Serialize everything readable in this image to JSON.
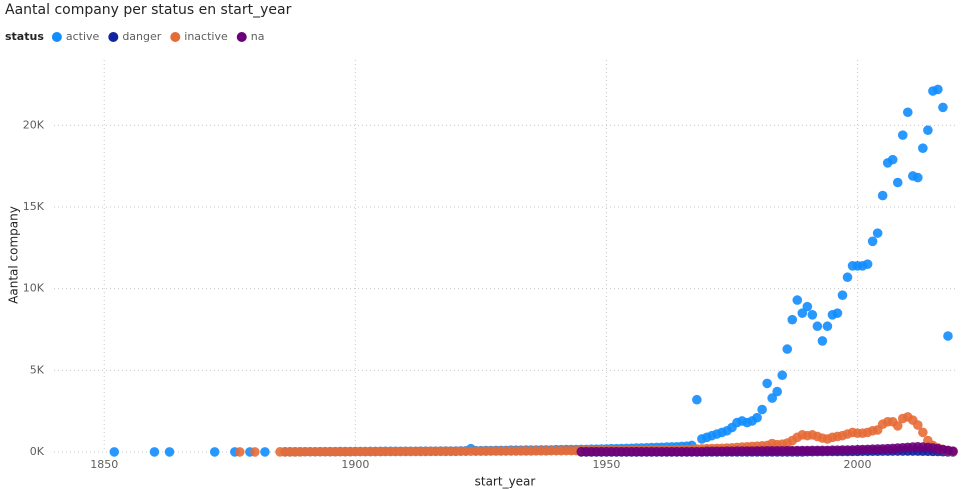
{
  "chart_data": {
    "type": "scatter",
    "title": "Aantal company per status en start_year",
    "legend_title": "status",
    "x_label": "start_year",
    "y_label": "Aantal company",
    "xlim": [
      1840,
      2020
    ],
    "xticks": [
      1850,
      1900,
      1950,
      2000
    ],
    "ylim": [
      0,
      24000
    ],
    "yticks": [
      {
        "value": 0,
        "label": "0K"
      },
      {
        "value": 5000,
        "label": "5K"
      },
      {
        "value": 10000,
        "label": "10K"
      },
      {
        "value": 15000,
        "label": "15K"
      },
      {
        "value": 20000,
        "label": "20K"
      }
    ],
    "grid": true,
    "series": [
      {
        "name": "active",
        "color": "#118DFF",
        "x": [
          1852,
          1860,
          1863,
          1872,
          1876,
          1879,
          1882,
          1886,
          1887,
          1888,
          1889,
          1890,
          1891,
          1892,
          1893,
          1894,
          1895,
          1896,
          1897,
          1898,
          1899,
          1900,
          1901,
          1902,
          1903,
          1904,
          1905,
          1906,
          1907,
          1908,
          1909,
          1910,
          1911,
          1912,
          1913,
          1914,
          1915,
          1916,
          1917,
          1918,
          1919,
          1920,
          1921,
          1922,
          1923,
          1924,
          1925,
          1926,
          1927,
          1928,
          1929,
          1930,
          1931,
          1932,
          1933,
          1934,
          1935,
          1936,
          1937,
          1938,
          1939,
          1940,
          1941,
          1942,
          1943,
          1944,
          1945,
          1946,
          1947,
          1948,
          1949,
          1950,
          1951,
          1952,
          1953,
          1954,
          1955,
          1956,
          1957,
          1958,
          1959,
          1960,
          1961,
          1962,
          1963,
          1964,
          1965,
          1966,
          1967,
          1968,
          1969,
          1970,
          1971,
          1972,
          1973,
          1974,
          1975,
          1976,
          1977,
          1978,
          1979,
          1980,
          1981,
          1982,
          1983,
          1984,
          1985,
          1986,
          1987,
          1988,
          1989,
          1990,
          1991,
          1992,
          1993,
          1994,
          1995,
          1996,
          1997,
          1998,
          1999,
          2000,
          2001,
          2002,
          2003,
          2004,
          2005,
          2006,
          2007,
          2008,
          2009,
          2010,
          2011,
          2012,
          2013,
          2014,
          2015,
          2016,
          2017,
          2018
        ],
        "values": [
          5,
          5,
          5,
          5,
          5,
          5,
          5,
          10,
          10,
          10,
          15,
          15,
          15,
          15,
          20,
          20,
          20,
          20,
          25,
          25,
          25,
          30,
          30,
          30,
          35,
          35,
          35,
          40,
          40,
          40,
          40,
          45,
          45,
          45,
          50,
          50,
          50,
          50,
          55,
          55,
          60,
          60,
          65,
          70,
          200,
          80,
          80,
          90,
          90,
          100,
          100,
          100,
          110,
          110,
          110,
          120,
          120,
          120,
          130,
          130,
          130,
          140,
          140,
          150,
          150,
          150,
          160,
          160,
          170,
          170,
          180,
          190,
          200,
          200,
          210,
          220,
          230,
          240,
          250,
          260,
          270,
          280,
          290,
          300,
          310,
          320,
          340,
          360,
          400,
          3200,
          800,
          900,
          1000,
          1100,
          1200,
          1300,
          1500,
          1800,
          1900,
          1800,
          1900,
          2100,
          2600,
          4200,
          3300,
          3700,
          4700,
          6300,
          8100,
          9300,
          8500,
          8900,
          8400,
          7700,
          6800,
          7700,
          8400,
          8500,
          9600,
          10700,
          11400,
          11400,
          11400,
          11500,
          12900,
          13400,
          15700,
          17700,
          17900,
          16500,
          19400,
          20800,
          16900,
          16800,
          18600,
          19700,
          22100,
          22200,
          21100,
          7100
        ]
      },
      {
        "name": "danger",
        "color": "#12239E",
        "x": [
          1945,
          1946,
          1947,
          1948,
          1949,
          1950,
          1951,
          1952,
          1953,
          1954,
          1955,
          1956,
          1957,
          1958,
          1959,
          1960,
          1961,
          1962,
          1963,
          1964,
          1965,
          1966,
          1967,
          1968,
          1969,
          1970,
          1971,
          1972,
          1973,
          1974,
          1975,
          1976,
          1977,
          1978,
          1979,
          1980,
          1981,
          1982,
          1983,
          1984,
          1985,
          1986,
          1987,
          1988,
          1989,
          1990,
          1991,
          1992,
          1993,
          1994,
          1995,
          1996,
          1997,
          1998,
          1999,
          2000,
          2001,
          2002,
          2003,
          2004,
          2005,
          2006,
          2007,
          2008,
          2009,
          2010,
          2011,
          2012,
          2013,
          2014,
          2015,
          2016,
          2017,
          2018,
          2019
        ],
        "values": [
          5,
          5,
          5,
          5,
          5,
          5,
          5,
          5,
          5,
          5,
          5,
          5,
          5,
          5,
          5,
          5,
          5,
          5,
          5,
          5,
          5,
          5,
          5,
          5,
          5,
          10,
          10,
          10,
          10,
          10,
          10,
          10,
          10,
          10,
          10,
          10,
          10,
          10,
          10,
          10,
          10,
          10,
          10,
          10,
          10,
          20,
          20,
          25,
          25,
          30,
          30,
          30,
          35,
          35,
          40,
          40,
          45,
          45,
          50,
          50,
          55,
          55,
          60,
          60,
          60,
          60,
          60,
          55,
          50,
          45,
          40,
          30,
          20,
          10,
          5
        ]
      },
      {
        "name": "inactive",
        "color": "#E66C37",
        "x": [
          1877,
          1880,
          1885,
          1886,
          1887,
          1888,
          1889,
          1890,
          1891,
          1892,
          1893,
          1894,
          1895,
          1896,
          1897,
          1898,
          1899,
          1900,
          1901,
          1902,
          1903,
          1904,
          1905,
          1906,
          1907,
          1908,
          1909,
          1910,
          1911,
          1912,
          1913,
          1914,
          1915,
          1916,
          1917,
          1918,
          1919,
          1920,
          1921,
          1922,
          1923,
          1924,
          1925,
          1926,
          1927,
          1928,
          1929,
          1930,
          1931,
          1932,
          1933,
          1934,
          1935,
          1936,
          1937,
          1938,
          1939,
          1940,
          1941,
          1942,
          1943,
          1944,
          1945,
          1946,
          1947,
          1948,
          1949,
          1950,
          1951,
          1952,
          1953,
          1954,
          1955,
          1956,
          1957,
          1958,
          1959,
          1960,
          1961,
          1962,
          1963,
          1964,
          1965,
          1966,
          1967,
          1968,
          1969,
          1970,
          1971,
          1972,
          1973,
          1974,
          1975,
          1976,
          1977,
          1978,
          1979,
          1980,
          1981,
          1982,
          1983,
          1984,
          1985,
          1986,
          1987,
          1988,
          1989,
          1990,
          1991,
          1992,
          1993,
          1994,
          1995,
          1996,
          1997,
          1998,
          1999,
          2000,
          2001,
          2002,
          2003,
          2004,
          2005,
          2006,
          2007,
          2008,
          2009,
          2010,
          2011,
          2012,
          2013,
          2014,
          2015,
          2016,
          2017,
          2018,
          2019
        ],
        "values": [
          5,
          5,
          10,
          10,
          10,
          10,
          10,
          15,
          15,
          15,
          15,
          15,
          20,
          20,
          20,
          20,
          20,
          25,
          25,
          25,
          25,
          25,
          30,
          30,
          30,
          30,
          30,
          35,
          35,
          35,
          35,
          35,
          40,
          40,
          40,
          40,
          40,
          40,
          45,
          45,
          45,
          50,
          50,
          50,
          55,
          55,
          55,
          60,
          60,
          60,
          65,
          65,
          65,
          70,
          70,
          70,
          75,
          75,
          75,
          80,
          80,
          80,
          85,
          85,
          90,
          90,
          95,
          95,
          100,
          100,
          105,
          105,
          110,
          110,
          115,
          120,
          125,
          130,
          135,
          140,
          145,
          150,
          155,
          160,
          170,
          180,
          190,
          200,
          210,
          220,
          230,
          240,
          260,
          280,
          300,
          320,
          340,
          360,
          380,
          400,
          520,
          450,
          480,
          550,
          700,
          900,
          1050,
          1000,
          1050,
          950,
          850,
          800,
          900,
          950,
          1000,
          1100,
          1200,
          1150,
          1150,
          1200,
          1300,
          1350,
          1700,
          1850,
          1850,
          1600,
          2050,
          2150,
          1950,
          1650,
          1200,
          700,
          400,
          250,
          150,
          80,
          30
        ]
      },
      {
        "name": "na",
        "color": "#6B007B",
        "x": [
          1945,
          1946,
          1947,
          1948,
          1949,
          1950,
          1951,
          1952,
          1953,
          1954,
          1955,
          1956,
          1957,
          1958,
          1959,
          1960,
          1961,
          1962,
          1963,
          1964,
          1965,
          1966,
          1967,
          1968,
          1969,
          1970,
          1971,
          1972,
          1973,
          1974,
          1975,
          1976,
          1977,
          1978,
          1979,
          1980,
          1981,
          1982,
          1983,
          1984,
          1985,
          1986,
          1987,
          1988,
          1989,
          1990,
          1991,
          1992,
          1993,
          1994,
          1995,
          1996,
          1997,
          1998,
          1999,
          2000,
          2001,
          2002,
          2003,
          2004,
          2005,
          2006,
          2007,
          2008,
          2009,
          2010,
          2011,
          2012,
          2013,
          2014,
          2015,
          2016,
          2017,
          2018,
          2019
        ],
        "values": [
          20,
          20,
          20,
          20,
          20,
          20,
          20,
          20,
          20,
          20,
          20,
          20,
          20,
          20,
          20,
          20,
          20,
          20,
          20,
          20,
          20,
          20,
          20,
          20,
          20,
          40,
          40,
          45,
          45,
          50,
          50,
          55,
          55,
          60,
          60,
          65,
          65,
          70,
          70,
          75,
          75,
          80,
          80,
          85,
          90,
          90,
          95,
          95,
          100,
          100,
          110,
          110,
          120,
          120,
          130,
          140,
          150,
          160,
          170,
          180,
          190,
          200,
          220,
          240,
          260,
          280,
          300,
          320,
          300,
          280,
          250,
          200,
          150,
          100,
          50
        ]
      }
    ]
  }
}
